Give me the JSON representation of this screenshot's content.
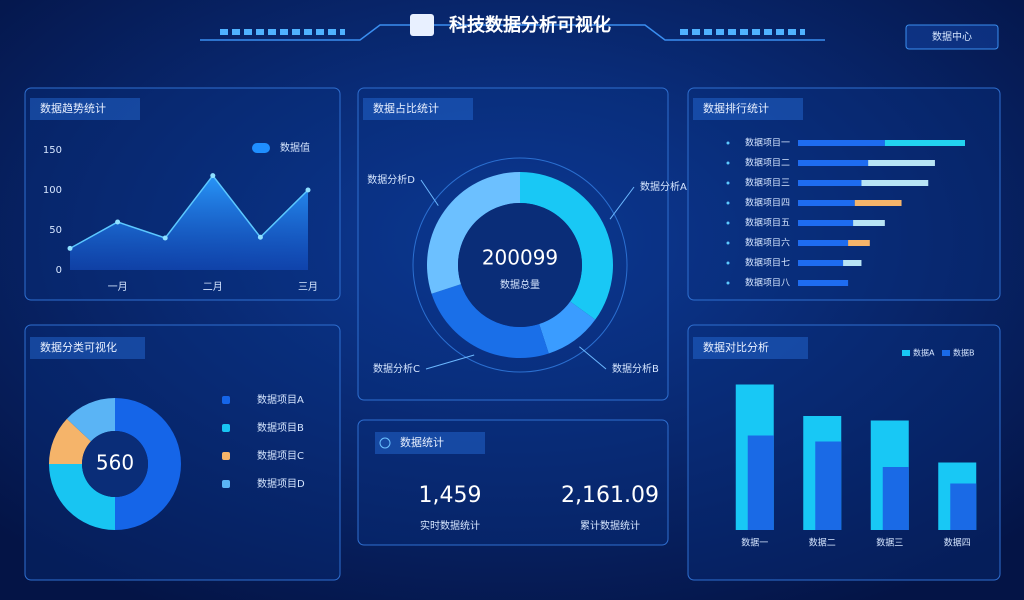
{
  "header": {
    "title": "科技数据分析可视化",
    "button": "数据中心"
  },
  "kpi_panel": {
    "title": "数据统计",
    "items": [
      {
        "value": "1,459",
        "label": "实时数据统计"
      },
      {
        "value": "2,161.09",
        "label": "累计数据统计"
      }
    ]
  },
  "chart_data": [
    {
      "type": "area",
      "title": "数据趋势统计",
      "categories": [
        null,
        "一月",
        null,
        "二月",
        null,
        "三月"
      ],
      "series": [
        {
          "name": "数据值",
          "color": "#1f8fff",
          "values": [
            27,
            60,
            40,
            118,
            41,
            100
          ]
        }
      ],
      "ylim": [
        0,
        150
      ],
      "yticks": [
        0,
        50,
        100,
        150
      ]
    },
    {
      "type": "donut",
      "title": "数据占比统计",
      "center_value": "200099",
      "center_label": "数据总量",
      "categories": [
        "数据分析A",
        "数据分析B",
        "数据分析C",
        "数据分析D"
      ],
      "values": [
        35,
        10,
        25,
        30
      ],
      "colors": [
        "#19c8f5",
        "#3a9cff",
        "#1a6fe8",
        "#6cc0ff"
      ]
    },
    {
      "type": "hbar",
      "title": "数据排行统计",
      "categories": [
        "数据项目一",
        "数据项目二",
        "数据项目三",
        "数据项目四",
        "数据项目五",
        "数据项目六",
        "数据项目七",
        "数据项目八"
      ],
      "xlim": [
        0,
        100
      ],
      "series": [
        {
          "color": "#1e6cf0",
          "values": [
            52,
            42,
            38,
            34,
            33,
            30,
            27,
            30
          ]
        },
        {
          "colors": [
            "#22d3f0",
            "#b8e4f5",
            "#b8e4f5",
            "#f5b46a",
            "#b8e4f5",
            "#f5b46a",
            "#b8e4f5",
            "#b8e4f5"
          ],
          "values": [
            48,
            40,
            40,
            28,
            19,
            13,
            11,
            null
          ]
        }
      ]
    },
    {
      "type": "donut",
      "title": "数据分类可视化",
      "center_value": "560",
      "categories": [
        "数据项目A",
        "数据项目B",
        "数据项目C",
        "数据项目D"
      ],
      "values": [
        50,
        25,
        12,
        13
      ],
      "colors": [
        "#1565e8",
        "#18c5f2",
        "#f5b46a",
        "#5ab4f5"
      ]
    },
    {
      "type": "bar",
      "title": "数据对比分析",
      "categories": [
        "数据一",
        "数据二",
        "数据三",
        "数据四"
      ],
      "ylim": [
        0,
        100
      ],
      "series": [
        {
          "name": "数据A",
          "color": "#18c8f5",
          "values": [
            97,
            76,
            73,
            45
          ]
        },
        {
          "name": "数据B",
          "color": "#1a6ae6",
          "values": [
            63,
            59,
            42,
            31
          ]
        }
      ]
    }
  ]
}
